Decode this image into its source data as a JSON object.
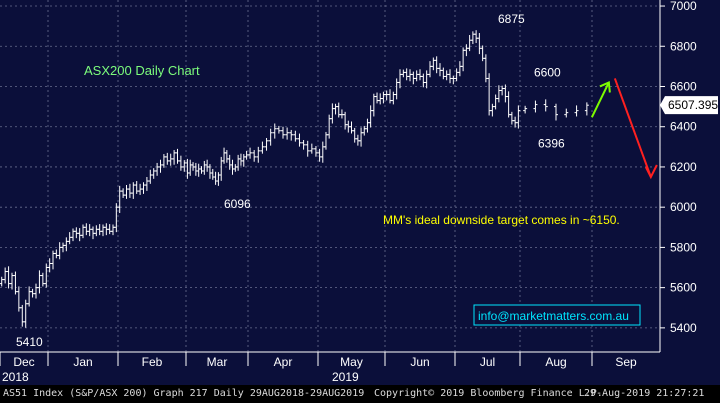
{
  "chart_data": {
    "type": "ohlc",
    "title": "ASX200 Daily Chart",
    "xlabel": "",
    "ylabel": "",
    "ylim": [
      5280,
      7030
    ],
    "y_ticks": [
      5400,
      5600,
      5800,
      6000,
      6200,
      6400,
      6600,
      6800,
      7000
    ],
    "x_tick_labels": [
      "Dec",
      "Jan",
      "Feb",
      "Mar",
      "Apr",
      "May",
      "Jun",
      "Jul",
      "Aug",
      "Sep"
    ],
    "x_year_labels": [
      "2018",
      "2019"
    ],
    "grid": true,
    "last_price": "6507.395",
    "colors": {
      "background": "#0b0f3a",
      "bars": "#ffffff",
      "grid": "#6a6f8f",
      "title": "#7CFC7C",
      "note": "#ffff00",
      "up_arrow": "#7CFC00",
      "down_arrow": "#ff2020",
      "link": "#00e5ff"
    },
    "annotations": [
      {
        "text": "6875",
        "value": 6875
      },
      {
        "text": "6600",
        "value": 6600
      },
      {
        "text": "6396",
        "value": 6396
      },
      {
        "text": "6096",
        "value": 6096
      },
      {
        "text": "5410",
        "value": 5410
      }
    ],
    "note": "MM's ideal downside target comes in ~6150.",
    "projection": {
      "up_to": 6620,
      "down_to": 6150
    },
    "closes": [
      [
        5640,
        5680,
        5620,
        5660,
        5580,
        5500,
        5430,
        5520,
        5580,
        5570,
        5600,
        5660,
        5620,
        5700
      ],
      [
        5720,
        5770,
        5760,
        5800,
        5810,
        5830,
        5850,
        5880,
        5870,
        5860,
        5900,
        5880,
        5890,
        5870,
        5890,
        5880,
        5900,
        5890,
        5880,
        5900,
        6000
      ],
      [
        6080,
        6060,
        6090,
        6070,
        6110,
        6080,
        6090,
        6110,
        6130,
        6160,
        6180,
        6200,
        6210,
        6250,
        6230,
        6240,
        6270,
        6230,
        6200,
        6220
      ],
      [
        6170,
        6210,
        6200,
        6180,
        6190,
        6180,
        6210,
        6200,
        6170,
        6150,
        6130,
        6160,
        6230,
        6270,
        6240,
        6210,
        6190,
        6200,
        6240,
        6230,
        6250,
        6260
      ],
      [
        6270,
        6250,
        6280,
        6300,
        6330,
        6370,
        6390,
        6380,
        6360,
        6370,
        6360,
        6340,
        6320,
        6310,
        6280,
        6290,
        6270
      ],
      [
        6250,
        6300,
        6360,
        6440,
        6490,
        6500,
        6460,
        6460,
        6410,
        6400,
        6380,
        6340,
        6330,
        6370,
        6390,
        6420,
        6480,
        6550,
        6530,
        6540,
        6560
      ],
      [
        6560,
        6530,
        6560,
        6620,
        6660,
        6670,
        6650,
        6660,
        6640,
        6660,
        6650,
        6620,
        6660,
        6700,
        6730,
        6690,
        6680,
        6650,
        6660,
        6640,
        6640
      ],
      [
        6670,
        6700,
        6780,
        6790,
        6830,
        6860,
        6840,
        6790,
        6740,
        6640,
        6480,
        6500,
        6540,
        6580,
        6590,
        6550,
        6460,
        6430,
        6420,
        6480
      ],
      [
        6490,
        6510,
        6500,
        6460,
        6470,
        6480,
        6507
      ]
    ]
  },
  "footer": {
    "left": "AS51 Index (S&P/ASX 200) Graph 217  Daily 29AUG2018-29AUG2019",
    "copyright": "Copyright© 2019 Bloomberg Finance L.P.",
    "timestamp": "29-Aug-2019 21:27:21"
  },
  "contact": "info@marketmatters.com.au"
}
